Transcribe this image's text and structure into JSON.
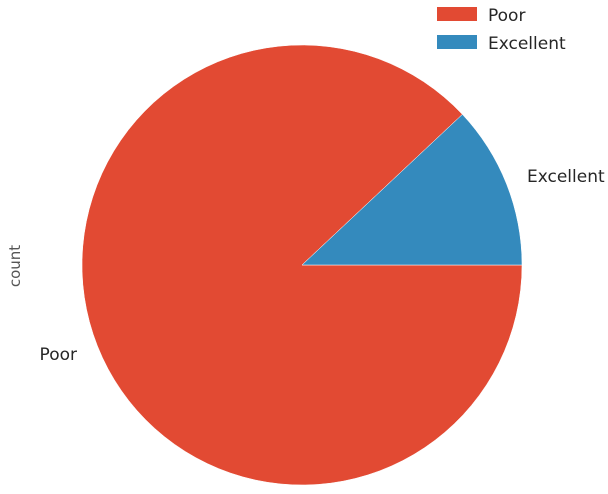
{
  "chart_data": {
    "type": "pie",
    "categories": [
      "Poor",
      "Excellent"
    ],
    "values": [
      88,
      12
    ],
    "colors": [
      "#E24A33",
      "#348ABD"
    ],
    "ylabel": "count",
    "legend": {
      "placement": "top-right",
      "entries": [
        "Poor",
        "Excellent"
      ]
    },
    "start": "right",
    "direction": "clockwise"
  }
}
